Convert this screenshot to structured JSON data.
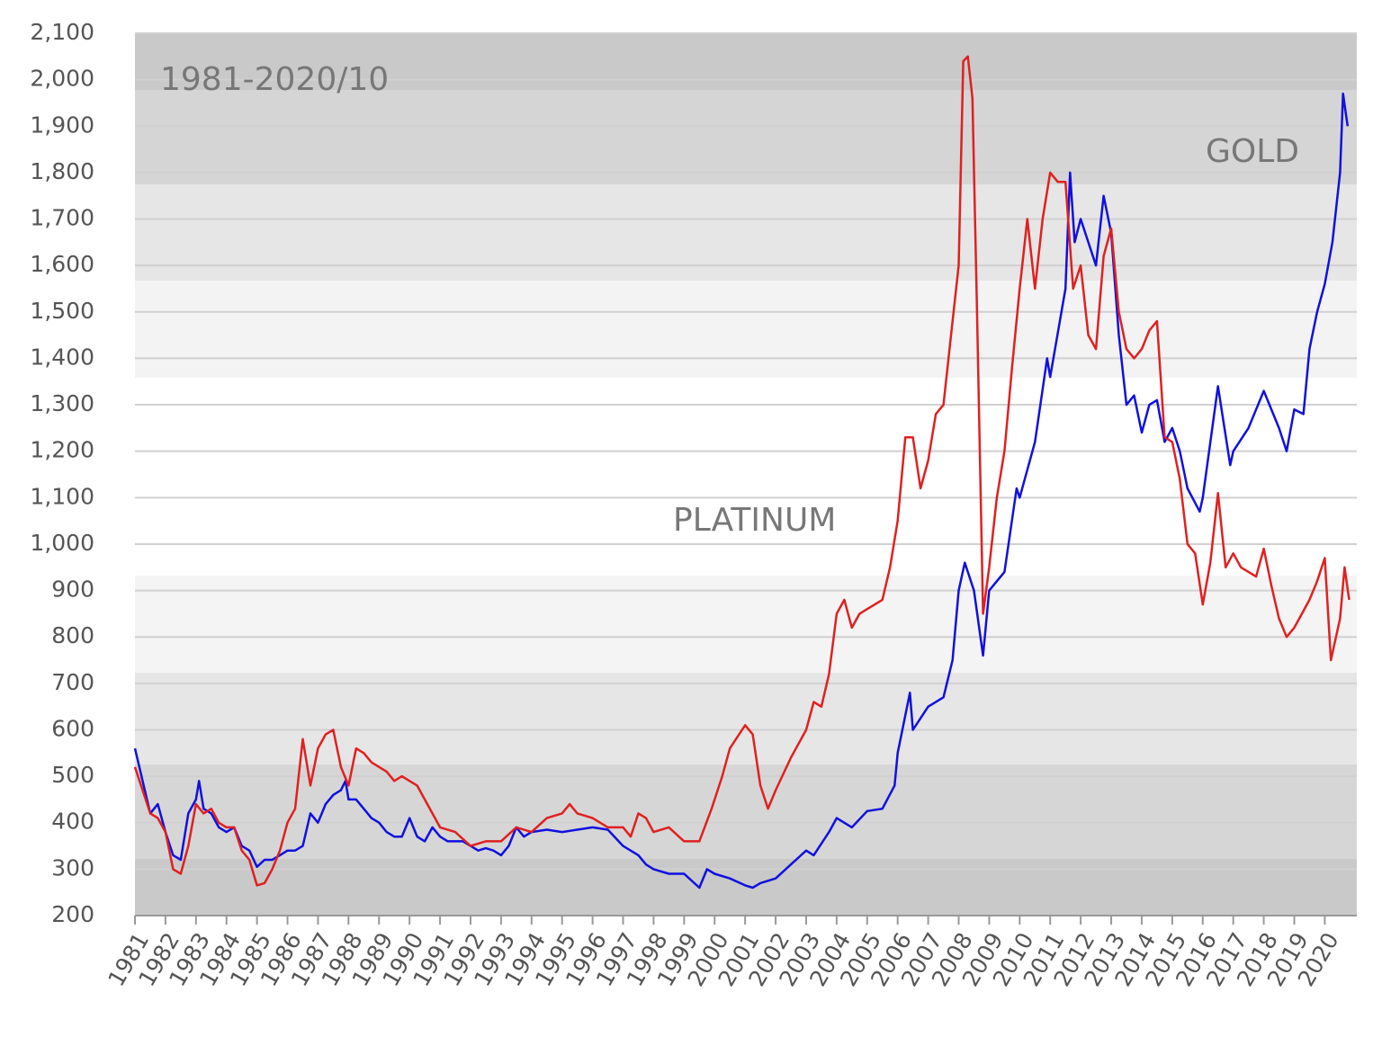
{
  "chart_data": {
    "type": "line",
    "annotations": [
      "1981-2020/10",
      "GOLD",
      "PLATINUM"
    ],
    "xlim": [
      1981,
      2021.05
    ],
    "ylim": [
      200,
      2100
    ],
    "xticks": [
      1981,
      1982,
      1983,
      1984,
      1985,
      1986,
      1987,
      1988,
      1989,
      1990,
      1991,
      1992,
      1993,
      1994,
      1995,
      1996,
      1997,
      1998,
      1999,
      2000,
      2001,
      2002,
      2003,
      2004,
      2005,
      2006,
      2007,
      2008,
      2009,
      2010,
      2011,
      2012,
      2013,
      2014,
      2015,
      2016,
      2017,
      2018,
      2019,
      2020
    ],
    "yticks": [
      200,
      300,
      400,
      500,
      600,
      700,
      800,
      900,
      {
        "value": 1000,
        "label": "1,000"
      },
      {
        "value": 1100,
        "label": "1,100"
      },
      {
        "value": 1200,
        "label": "1,200"
      },
      {
        "value": 1300,
        "label": "1,300"
      },
      {
        "value": 1400,
        "label": "1,400"
      },
      {
        "value": 1500,
        "label": "1,500"
      },
      {
        "value": 1600,
        "label": "1,600"
      },
      {
        "value": 1700,
        "label": "1,700"
      },
      {
        "value": 1800,
        "label": "1,800"
      },
      {
        "value": 1900,
        "label": "1,900"
      },
      {
        "value": 2000,
        "label": "2,000"
      },
      {
        "value": 2100,
        "label": "2,100"
      }
    ],
    "grid": true,
    "series": [
      {
        "color": "#1010e0",
        "x": [
          1981.0,
          1981.25,
          1981.5,
          1981.75,
          1982.0,
          1982.25,
          1982.5,
          1982.75,
          1983.0,
          1983.1,
          1983.25,
          1983.5,
          1983.75,
          1984.0,
          1984.25,
          1984.5,
          1984.75,
          1985.0,
          1985.25,
          1985.5,
          1985.75,
          1986.0,
          1986.25,
          1986.5,
          1986.75,
          1987.0,
          1987.25,
          1987.5,
          1987.75,
          1987.9,
          1988.0,
          1988.25,
          1988.5,
          1988.75,
          1989.0,
          1989.25,
          1989.5,
          1989.75,
          1990.0,
          1990.25,
          1990.5,
          1990.75,
          1991.0,
          1991.25,
          1991.5,
          1991.75,
          1992.0,
          1992.25,
          1992.5,
          1992.75,
          1993.0,
          1993.25,
          1993.5,
          1993.75,
          1994.0,
          1994.5,
          1995.0,
          1995.5,
          1996.0,
          1996.5,
          1997.0,
          1997.5,
          1997.75,
          1998.0,
          1998.5,
          1999.0,
          1999.5,
          1999.75,
          2000.0,
          2000.5,
          2001.0,
          2001.25,
          2001.5,
          2002.0,
          2002.5,
          2003.0,
          2003.25,
          2003.75,
          2004.0,
          2004.5,
          2005.0,
          2005.5,
          2005.9,
          2006.0,
          2006.4,
          2006.5,
          2007.0,
          2007.5,
          2007.8,
          2008.0,
          2008.2,
          2008.5,
          2008.8,
          2009.0,
          2009.5,
          2009.9,
          2010.0,
          2010.5,
          2010.9,
          2011.0,
          2011.5,
          2011.65,
          2011.8,
          2012.0,
          2012.3,
          2012.5,
          2012.75,
          2013.0,
          2013.25,
          2013.5,
          2013.75,
          2014.0,
          2014.25,
          2014.5,
          2014.75,
          2015.0,
          2015.25,
          2015.5,
          2015.9,
          2016.0,
          2016.5,
          2016.9,
          2017.0,
          2017.5,
          2018.0,
          2018.5,
          2018.75,
          2019.0,
          2019.3,
          2019.5,
          2019.75,
          2020.0,
          2020.25,
          2020.5,
          2020.6,
          2020.75
        ],
        "values": [
          560,
          490,
          420,
          440,
          380,
          330,
          320,
          420,
          450,
          490,
          430,
          420,
          390,
          380,
          390,
          350,
          340,
          305,
          320,
          320,
          330,
          340,
          340,
          350,
          420,
          400,
          440,
          460,
          470,
          490,
          450,
          450,
          430,
          410,
          400,
          380,
          370,
          370,
          410,
          370,
          360,
          390,
          370,
          360,
          360,
          360,
          350,
          340,
          345,
          340,
          330,
          350,
          390,
          370,
          380,
          385,
          380,
          385,
          390,
          385,
          350,
          330,
          310,
          300,
          290,
          290,
          260,
          300,
          290,
          280,
          265,
          260,
          270,
          280,
          310,
          340,
          330,
          380,
          410,
          390,
          425,
          430,
          480,
          550,
          680,
          600,
          650,
          670,
          750,
          900,
          960,
          900,
          760,
          900,
          940,
          1120,
          1100,
          1220,
          1400,
          1360,
          1550,
          1800,
          1650,
          1700,
          1640,
          1600,
          1750,
          1670,
          1450,
          1300,
          1320,
          1240,
          1300,
          1310,
          1220,
          1250,
          1200,
          1120,
          1070,
          1100,
          1340,
          1170,
          1200,
          1250,
          1330,
          1250,
          1200,
          1290,
          1280,
          1420,
          1500,
          1560,
          1650,
          1800,
          1970,
          1900
        ]
      },
      {
        "color": "#e02020",
        "x": [
          1981.0,
          1981.25,
          1981.5,
          1981.75,
          1982.0,
          1982.25,
          1982.5,
          1982.75,
          1983.0,
          1983.25,
          1983.5,
          1983.75,
          1984.0,
          1984.25,
          1984.5,
          1984.75,
          1985.0,
          1985.25,
          1985.5,
          1985.75,
          1986.0,
          1986.25,
          1986.5,
          1986.75,
          1987.0,
          1987.25,
          1987.5,
          1987.75,
          1988.0,
          1988.25,
          1988.5,
          1988.75,
          1989.0,
          1989.25,
          1989.5,
          1989.75,
          1990.0,
          1990.25,
          1990.75,
          1991.0,
          1991.5,
          1992.0,
          1992.5,
          1993.0,
          1993.5,
          1994.0,
          1994.5,
          1995.0,
          1995.25,
          1995.5,
          1996.0,
          1996.5,
          1997.0,
          1997.25,
          1997.5,
          1997.75,
          1998.0,
          1998.5,
          1999.0,
          1999.5,
          1999.9,
          2000.25,
          2000.5,
          2001.0,
          2001.25,
          2001.5,
          2001.75,
          2002.0,
          2002.5,
          2003.0,
          2003.25,
          2003.5,
          2003.75,
          2004.0,
          2004.25,
          2004.5,
          2004.75,
          2005.0,
          2005.5,
          2005.75,
          2006.0,
          2006.25,
          2006.5,
          2006.75,
          2007.0,
          2007.25,
          2007.5,
          2007.75,
          2008.0,
          2008.15,
          2008.3,
          2008.45,
          2008.6,
          2008.8,
          2009.0,
          2009.25,
          2009.5,
          2009.75,
          2010.0,
          2010.25,
          2010.5,
          2010.75,
          2011.0,
          2011.25,
          2011.5,
          2011.75,
          2012.0,
          2012.25,
          2012.5,
          2012.75,
          2013.0,
          2013.25,
          2013.5,
          2013.75,
          2014.0,
          2014.25,
          2014.5,
          2014.75,
          2015.0,
          2015.25,
          2015.5,
          2015.75,
          2016.0,
          2016.25,
          2016.5,
          2016.75,
          2017.0,
          2017.25,
          2017.5,
          2017.75,
          2018.0,
          2018.25,
          2018.5,
          2018.75,
          2019.0,
          2019.25,
          2019.5,
          2019.75,
          2020.0,
          2020.2,
          2020.5,
          2020.65,
          2020.8
        ],
        "values": [
          520,
          470,
          420,
          410,
          380,
          300,
          290,
          350,
          440,
          420,
          430,
          400,
          390,
          390,
          340,
          320,
          265,
          270,
          300,
          340,
          400,
          430,
          580,
          480,
          560,
          590,
          600,
          520,
          480,
          560,
          550,
          530,
          520,
          510,
          490,
          500,
          490,
          480,
          420,
          390,
          380,
          350,
          360,
          360,
          390,
          380,
          410,
          420,
          440,
          420,
          410,
          390,
          390,
          370,
          420,
          410,
          380,
          390,
          360,
          360,
          430,
          500,
          560,
          610,
          590,
          480,
          430,
          470,
          540,
          600,
          660,
          650,
          720,
          850,
          880,
          820,
          850,
          860,
          880,
          950,
          1050,
          1230,
          1230,
          1120,
          1180,
          1280,
          1300,
          1450,
          1600,
          2040,
          2050,
          1960,
          1500,
          850,
          950,
          1100,
          1200,
          1380,
          1550,
          1700,
          1550,
          1700,
          1800,
          1780,
          1780,
          1550,
          1600,
          1450,
          1420,
          1620,
          1680,
          1500,
          1420,
          1400,
          1420,
          1460,
          1480,
          1230,
          1220,
          1140,
          1000,
          980,
          870,
          960,
          1110,
          950,
          980,
          950,
          940,
          930,
          990,
          910,
          840,
          800,
          820,
          850,
          880,
          920,
          970,
          750,
          840,
          950,
          880
        ]
      }
    ]
  }
}
